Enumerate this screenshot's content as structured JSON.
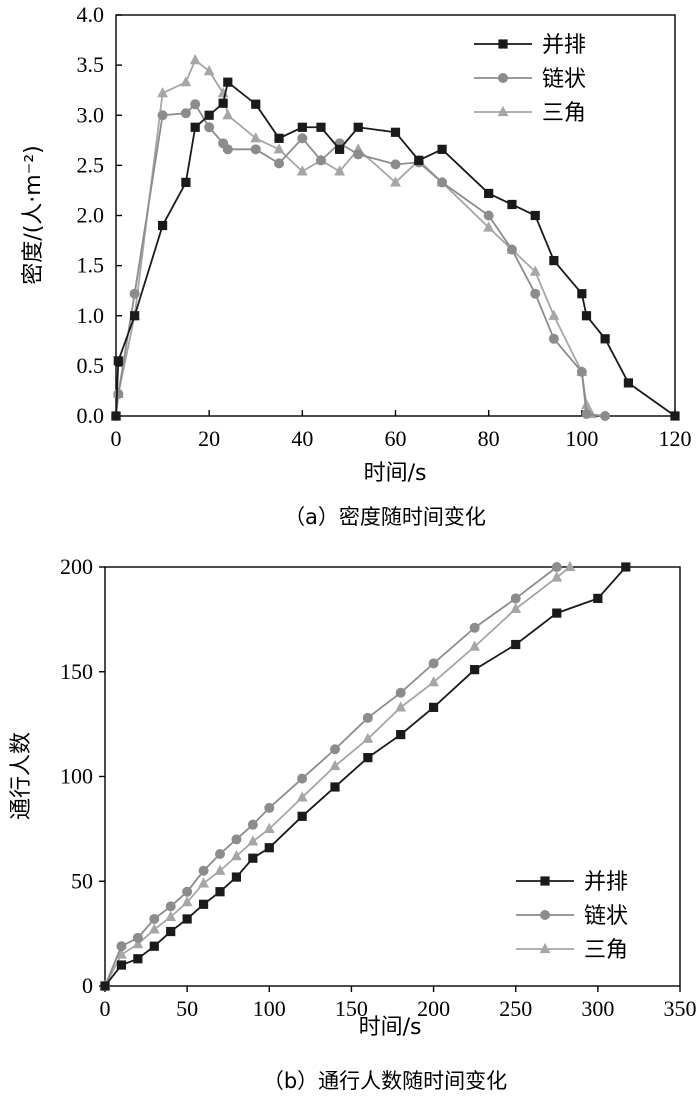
{
  "chart_data": [
    {
      "type": "line",
      "caption": "（a）密度随时间变化",
      "xlabel": "时间/s",
      "ylabel": "密度/(人·m⁻²)",
      "xlim": [
        0,
        120
      ],
      "ylim": [
        0,
        4.0
      ],
      "xticks": [
        "0",
        "20",
        "40",
        "60",
        "80",
        "100",
        "120"
      ],
      "yticks": [
        "0.0",
        "0.5",
        "1.0",
        "1.5",
        "2.0",
        "2.5",
        "3.0",
        "3.5",
        "4.0"
      ],
      "legend_position": "top-right",
      "grid": false,
      "series": [
        {
          "name": "并排",
          "marker": "square",
          "color": "#1a1a1a",
          "x": [
            0,
            0.5,
            4,
            10,
            15,
            17,
            20,
            23,
            24,
            30,
            35,
            40,
            44,
            48,
            52,
            60,
            65,
            70,
            80,
            85,
            90,
            94,
            100,
            101,
            105,
            110,
            120
          ],
          "y": [
            0,
            0.55,
            1.0,
            1.9,
            2.33,
            2.88,
            3.0,
            3.12,
            3.33,
            3.11,
            2.77,
            2.88,
            2.88,
            2.66,
            2.88,
            2.83,
            2.55,
            2.66,
            2.22,
            2.11,
            2.0,
            1.55,
            1.22,
            1.0,
            0.77,
            0.33,
            0
          ]
        },
        {
          "name": "链状",
          "marker": "circle",
          "color": "#8c8c8c",
          "x": [
            0,
            0.5,
            4,
            10,
            15,
            17,
            20,
            23,
            24,
            30,
            35,
            40,
            44,
            48,
            52,
            60,
            65,
            70,
            80,
            85,
            90,
            94,
            100,
            101,
            105
          ],
          "y": [
            0,
            0.22,
            1.22,
            3.0,
            3.02,
            3.11,
            2.88,
            2.72,
            2.66,
            2.66,
            2.52,
            2.77,
            2.55,
            2.72,
            2.61,
            2.51,
            2.53,
            2.33,
            2.0,
            1.66,
            1.22,
            0.77,
            0.44,
            0.02,
            0
          ]
        },
        {
          "name": "三角",
          "marker": "triangle",
          "color": "#a6a6a6",
          "x": [
            0,
            0.5,
            4,
            10,
            15,
            17,
            20,
            23,
            24,
            30,
            35,
            40,
            44,
            48,
            52,
            60,
            65,
            70,
            80,
            85,
            90,
            94,
            100,
            101,
            102
          ],
          "y": [
            0,
            0.22,
            1.0,
            3.22,
            3.33,
            3.55,
            3.44,
            3.22,
            3.0,
            2.77,
            2.66,
            2.44,
            2.55,
            2.44,
            2.66,
            2.33,
            2.55,
            2.33,
            1.88,
            1.66,
            1.44,
            1.0,
            0.44,
            0.11,
            0.02
          ]
        }
      ]
    },
    {
      "type": "line",
      "caption": "（b）通行人数随时间变化",
      "xlabel": "时间/s",
      "ylabel": "通行人数",
      "xlim": [
        0,
        350
      ],
      "ylim": [
        0,
        200
      ],
      "xticks": [
        "0",
        "50",
        "100",
        "150",
        "200",
        "250",
        "300",
        "350"
      ],
      "yticks": [
        "0",
        "50",
        "100",
        "150",
        "200"
      ],
      "legend_position": "bottom-right",
      "grid": false,
      "series": [
        {
          "name": "并排",
          "marker": "square",
          "color": "#1a1a1a",
          "x": [
            0,
            10,
            20,
            30,
            40,
            50,
            60,
            70,
            80,
            90,
            100,
            120,
            140,
            160,
            180,
            200,
            225,
            250,
            275,
            300,
            317
          ],
          "y": [
            0,
            10,
            13,
            19,
            26,
            32,
            39,
            45,
            52,
            61,
            66,
            81,
            95,
            109,
            120,
            133,
            151,
            163,
            178,
            185,
            200
          ]
        },
        {
          "name": "链状",
          "marker": "circle",
          "color": "#8c8c8c",
          "x": [
            0,
            10,
            20,
            30,
            40,
            50,
            60,
            70,
            80,
            90,
            100,
            120,
            140,
            160,
            180,
            200,
            225,
            250,
            275
          ],
          "y": [
            0,
            19,
            23,
            32,
            38,
            45,
            55,
            63,
            70,
            77,
            85,
            99,
            113,
            128,
            140,
            154,
            171,
            185,
            200
          ]
        },
        {
          "name": "三角",
          "marker": "triangle",
          "color": "#a6a6a6",
          "x": [
            0,
            10,
            20,
            30,
            40,
            50,
            60,
            70,
            80,
            90,
            100,
            120,
            140,
            160,
            180,
            200,
            225,
            250,
            275,
            283
          ],
          "y": [
            0,
            15,
            20,
            27,
            33,
            40,
            49,
            55,
            62,
            69,
            75,
            90,
            105,
            118,
            133,
            145,
            162,
            180,
            195,
            200
          ]
        }
      ]
    }
  ]
}
